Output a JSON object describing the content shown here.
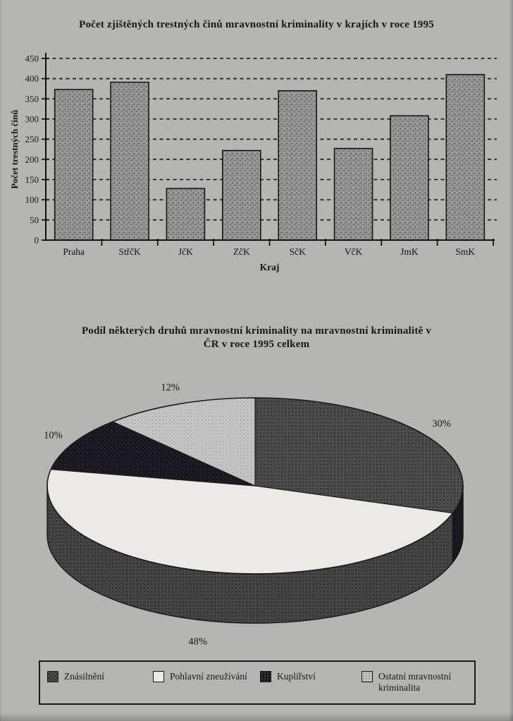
{
  "page": {
    "background_color": "#b5b5b4",
    "ink_color": "#161616",
    "kind": "scanned statistics page"
  },
  "chart_data": [
    {
      "type": "bar",
      "title": "Počet zjištěných trestných činů mravnostní kriminality v krajích v roce 1995",
      "xlabel": "Kraj",
      "ylabel": "Počet trestných činů",
      "categories": [
        "Praha",
        "StřčK",
        "JčK",
        "ZčK",
        "SčK",
        "VčK",
        "JmK",
        "SmK"
      ],
      "values": [
        373,
        391,
        128,
        222,
        370,
        227,
        308,
        410
      ],
      "ylim": [
        0,
        450
      ],
      "ytick_step": 50,
      "yticks": [
        0,
        50,
        100,
        150,
        200,
        250,
        300,
        350,
        400,
        450
      ],
      "grid": "dashed horizontal gridlines at every 50",
      "bar_color": "#969696",
      "bar_texture": "gray speckle"
    },
    {
      "type": "pie",
      "title_line1": "Podíl některých druhů mravnostní kriminality na mravnostní kriminalitě v",
      "title_line2": "ČR v roce 1995 celkem",
      "effect": "3d",
      "start_angle_deg": 0,
      "direction": "clockwise",
      "slices": [
        {
          "label": "Znásilnění",
          "value": 30,
          "display": "30%",
          "color": "#545454",
          "pattern": "crosshatch"
        },
        {
          "label": "Pohlavní zneužívání",
          "value": 48,
          "display": "48%",
          "color": "#eceae6",
          "pattern": "plain"
        },
        {
          "label": "Kuplířství",
          "value": 10,
          "display": "10%",
          "color": "#16161c",
          "pattern": "speckle"
        },
        {
          "label": "Ostatní mravnostní kriminalita",
          "value": 12,
          "display": "12%",
          "color": "#c7c7c7",
          "pattern": "dots"
        }
      ],
      "legend_position": "bottom boxed",
      "legend": [
        "Znásilnění",
        "Pohlavní zneužívání",
        "Kuplířství",
        "Ostatní mravnostní kriminalita"
      ]
    }
  ]
}
